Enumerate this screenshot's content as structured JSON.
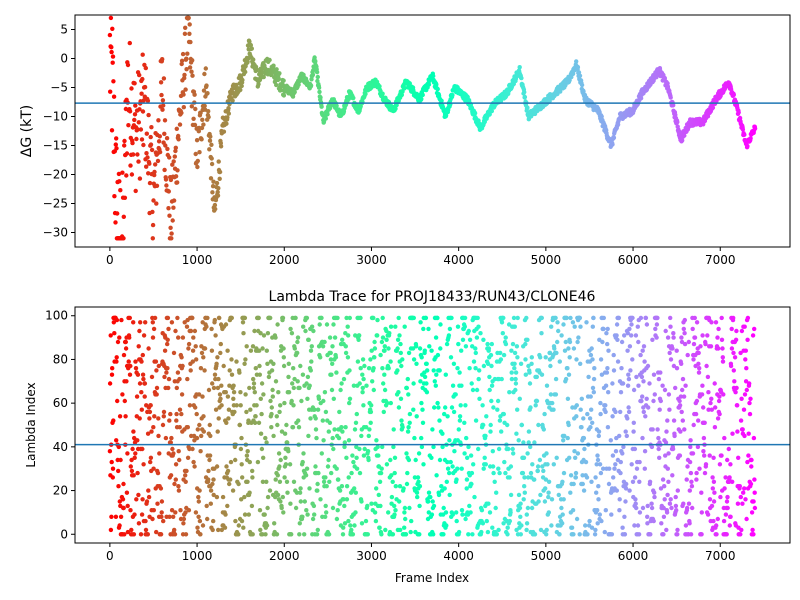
{
  "chart_data": [
    {
      "type": "scatter",
      "title": "",
      "xlabel": "",
      "ylabel": "ΔG (kT)",
      "xlim": [
        -400,
        7800
      ],
      "ylim": [
        -32.5,
        7.5
      ],
      "xticks": [
        0,
        1000,
        2000,
        3000,
        4000,
        5000,
        6000,
        7000
      ],
      "yticks": [
        5,
        0,
        -5,
        -10,
        -15,
        -20,
        -25,
        -30
      ],
      "reference_line": {
        "y": -7.7,
        "color": "#1f77b4"
      },
      "colormap": "rainbow (reversed with frame index: red at start, violet at end)",
      "grid": false,
      "series": [
        {
          "trace_points": [
            [
              0,
              0
            ],
            [
              30,
              -5
            ],
            [
              60,
              -20
            ],
            [
              100,
              -30
            ],
            [
              150,
              -31
            ],
            [
              200,
              -5
            ],
            [
              300,
              -13
            ],
            [
              400,
              -8
            ],
            [
              500,
              -25
            ],
            [
              600,
              -5
            ],
            [
              700,
              -28
            ],
            [
              800,
              -10
            ],
            [
              900,
              5
            ],
            [
              1000,
              -17
            ],
            [
              1100,
              -4
            ],
            [
              1150,
              -15
            ],
            [
              1200,
              -27
            ],
            [
              1300,
              -12
            ],
            [
              1400,
              -6
            ],
            [
              1500,
              -4
            ],
            [
              1600,
              2
            ],
            [
              1700,
              -4
            ],
            [
              1800,
              -1
            ],
            [
              1900,
              -3
            ],
            [
              2000,
              -5
            ],
            [
              2100,
              -6
            ],
            [
              2200,
              -3
            ],
            [
              2300,
              -5
            ],
            [
              2350,
              0
            ],
            [
              2450,
              -11
            ],
            [
              2550,
              -7
            ],
            [
              2650,
              -10
            ],
            [
              2750,
              -6
            ],
            [
              2850,
              -9
            ],
            [
              2950,
              -5
            ],
            [
              3050,
              -4
            ],
            [
              3150,
              -7
            ],
            [
              3250,
              -9
            ],
            [
              3400,
              -4
            ],
            [
              3550,
              -7
            ],
            [
              3700,
              -3
            ],
            [
              3850,
              -10
            ],
            [
              3950,
              -5
            ],
            [
              4100,
              -7
            ],
            [
              4250,
              -12
            ],
            [
              4400,
              -8
            ],
            [
              4550,
              -6
            ],
            [
              4700,
              -2
            ],
            [
              4800,
              -10
            ],
            [
              4950,
              -8
            ],
            [
              5100,
              -6
            ],
            [
              5250,
              -4
            ],
            [
              5350,
              -1
            ],
            [
              5450,
              -7
            ],
            [
              5600,
              -9
            ],
            [
              5750,
              -15
            ],
            [
              5850,
              -10
            ],
            [
              6000,
              -9
            ],
            [
              6100,
              -6
            ],
            [
              6200,
              -4
            ],
            [
              6300,
              -2
            ],
            [
              6400,
              -5
            ],
            [
              6550,
              -14
            ],
            [
              6650,
              -11
            ],
            [
              6800,
              -11
            ],
            [
              6950,
              -7
            ],
            [
              7100,
              -4
            ],
            [
              7200,
              -9
            ],
            [
              7300,
              -15
            ],
            [
              7400,
              -12
            ]
          ]
        }
      ]
    },
    {
      "type": "scatter",
      "title": "Lambda Trace for PROJ18433/RUN43/CLONE46",
      "xlabel": "Frame Index",
      "ylabel": "Lambda Index",
      "xlim": [
        -400,
        7800
      ],
      "ylim": [
        -4,
        104
      ],
      "xticks": [
        0,
        1000,
        2000,
        3000,
        4000,
        5000,
        6000,
        7000
      ],
      "yticks": [
        100,
        80,
        60,
        40,
        20,
        0
      ],
      "reference_line": {
        "y": 41,
        "color": "#1f77b4"
      },
      "colormap": "rainbow (reversed with frame index: red at start, violet at end)",
      "grid": false,
      "series": [
        {
          "x_range": [
            0,
            7400
          ],
          "y_range": [
            0,
            99
          ]
        }
      ]
    }
  ]
}
